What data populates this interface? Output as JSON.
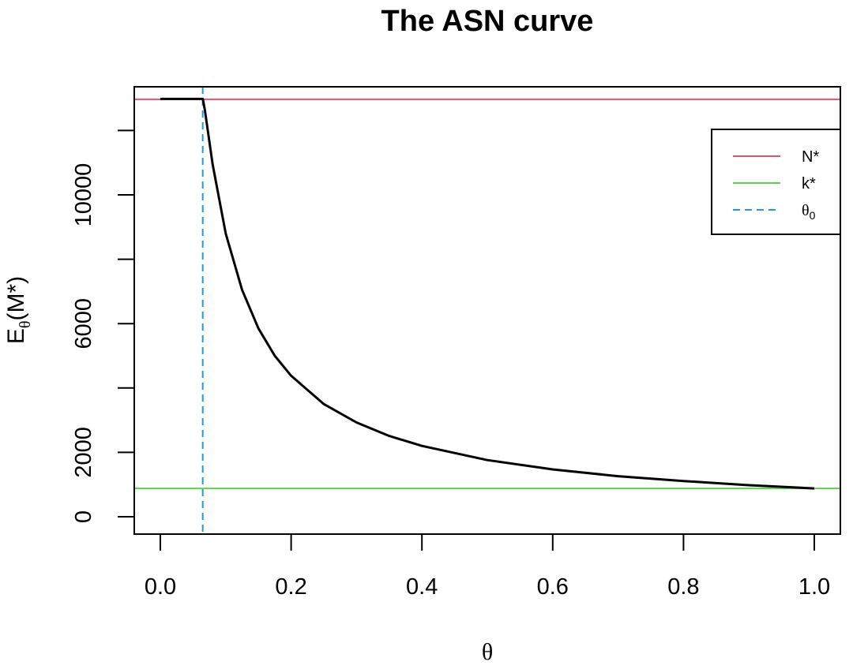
{
  "chart_data": {
    "type": "line",
    "title": "The ASN curve",
    "xlabel": "θ",
    "ylabel": {
      "main": "E",
      "subscript": "θ",
      "suffix": "(M*)"
    },
    "xlim": [
      0.0,
      1.0
    ],
    "ylim": [
      0,
      12500
    ],
    "x_ticks": [
      "0.0",
      "0.2",
      "0.4",
      "0.6",
      "0.8",
      "1.0"
    ],
    "y_ticks": [
      "0",
      "2000",
      "6000",
      "10000"
    ],
    "y_tick_values": [
      0,
      2000,
      6000,
      10000
    ],
    "y_minor_ticks": [
      4000,
      8000,
      12000
    ],
    "grid": false,
    "legend_placement": "top-right",
    "reference_lines": {
      "n_star": {
        "label": "N*",
        "y": 12970,
        "color": "#DF536B"
      },
      "k_star": {
        "label": "k*",
        "y": 880,
        "color": "#61D04F"
      },
      "theta0": {
        "label": "θ",
        "subscript": "0",
        "x": 0.0648,
        "color": "#2297E6",
        "dash": "dashed"
      }
    },
    "series": [
      {
        "color": "#000000",
        "points": [
          [
            0.0,
            12980
          ],
          [
            0.065,
            12980
          ],
          [
            0.068,
            12650
          ],
          [
            0.08,
            10950
          ],
          [
            0.1,
            8800
          ],
          [
            0.125,
            7050
          ],
          [
            0.15,
            5850
          ],
          [
            0.175,
            5000
          ],
          [
            0.2,
            4380
          ],
          [
            0.25,
            3500
          ],
          [
            0.3,
            2930
          ],
          [
            0.35,
            2510
          ],
          [
            0.4,
            2200
          ],
          [
            0.5,
            1760
          ],
          [
            0.6,
            1470
          ],
          [
            0.7,
            1260
          ],
          [
            0.8,
            1110
          ],
          [
            0.9,
            980
          ],
          [
            1.0,
            880
          ]
        ]
      }
    ]
  }
}
